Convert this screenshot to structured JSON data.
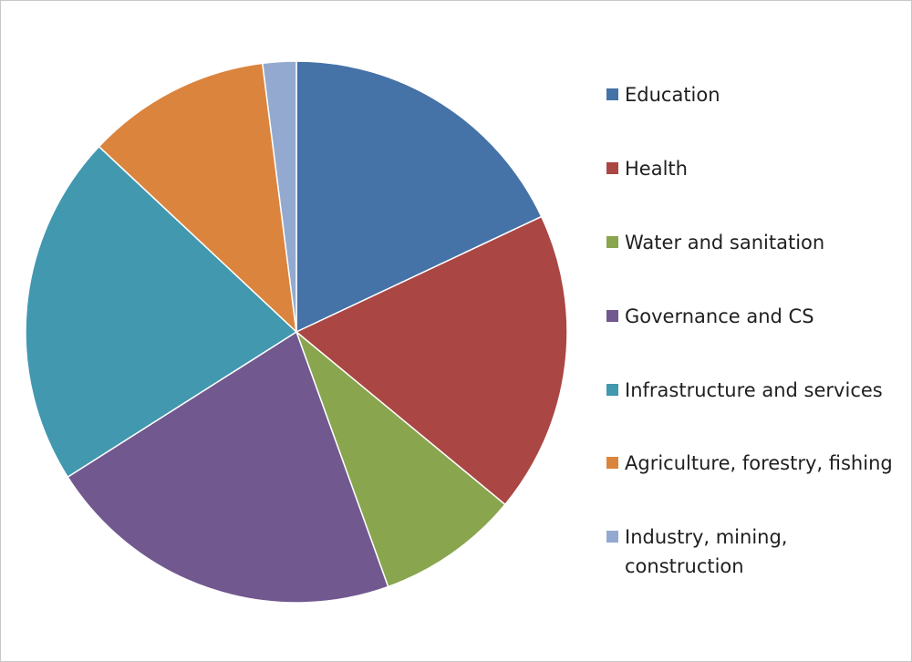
{
  "chart_data": {
    "type": "pie",
    "title": "",
    "legend_position": "right",
    "slices": [
      {
        "label": "Education",
        "value": 18.0,
        "color": "#4572A7"
      },
      {
        "label": "Health",
        "value": 18.0,
        "color": "#AA4643"
      },
      {
        "label": "Water and sanitation",
        "value": 8.5,
        "color": "#89A54E"
      },
      {
        "label": "Governance and CS",
        "value": 21.5,
        "color": "#71588F"
      },
      {
        "label": "Infrastructure and services",
        "value": 21.0,
        "color": "#4198AF"
      },
      {
        "label": "Agriculture, forestry, fishing",
        "value": 11.0,
        "color": "#DB843D"
      },
      {
        "label": "Industry, mining, construction",
        "value": 2.0,
        "color": "#93A9CF"
      }
    ]
  }
}
